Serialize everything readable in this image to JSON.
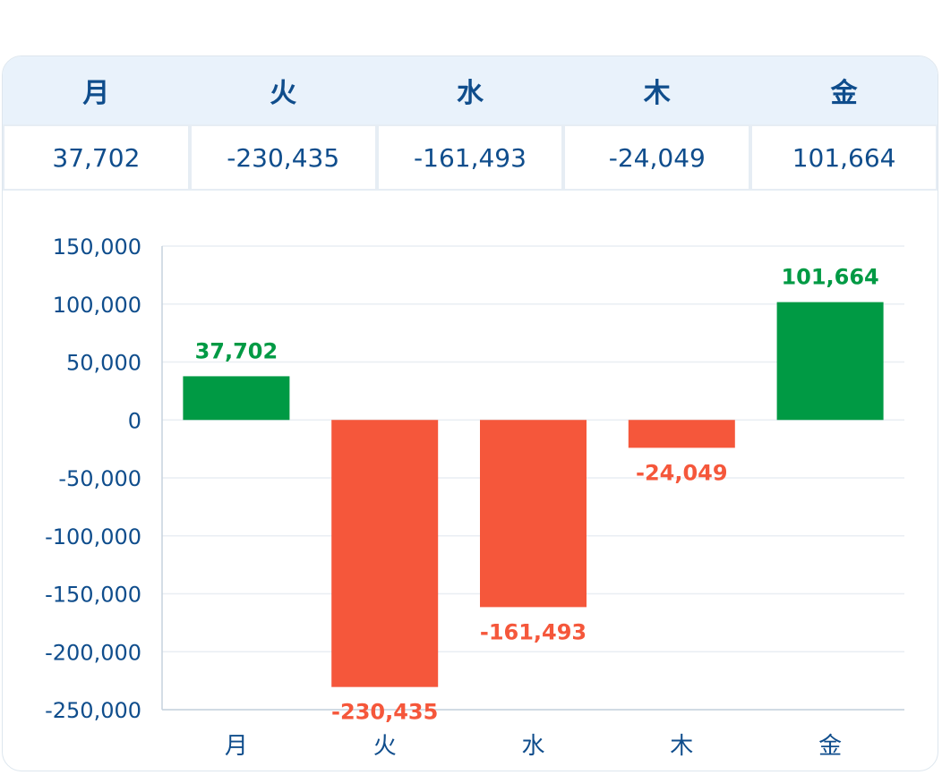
{
  "table": {
    "headers": [
      "月",
      "火",
      "水",
      "木",
      "金"
    ],
    "values": [
      "37,702",
      "-230,435",
      "-161,493",
      "-24,049",
      "101,664"
    ]
  },
  "colors": {
    "positive": "#009a44",
    "negative": "#f5573b",
    "text": "#0f4d8c",
    "grid": "#e9eef3"
  },
  "chart_data": {
    "type": "bar",
    "categories": [
      "月",
      "火",
      "水",
      "木",
      "金"
    ],
    "values": [
      37702,
      -230435,
      -161493,
      -24049,
      101664
    ],
    "data_labels": [
      "37,702",
      "-230,435",
      "-161,493",
      "-24,049",
      "101,664"
    ],
    "yticks": [
      150000,
      100000,
      50000,
      0,
      -50000,
      -100000,
      -150000,
      -200000,
      -250000
    ],
    "ytick_labels": [
      "150,000",
      "100,000",
      "50,000",
      "0",
      "-50,000",
      "-100,000",
      "-150,000",
      "-200,000",
      "-250,000"
    ],
    "ylim": [
      -250000,
      150000
    ],
    "grid": true,
    "legend": "none"
  }
}
